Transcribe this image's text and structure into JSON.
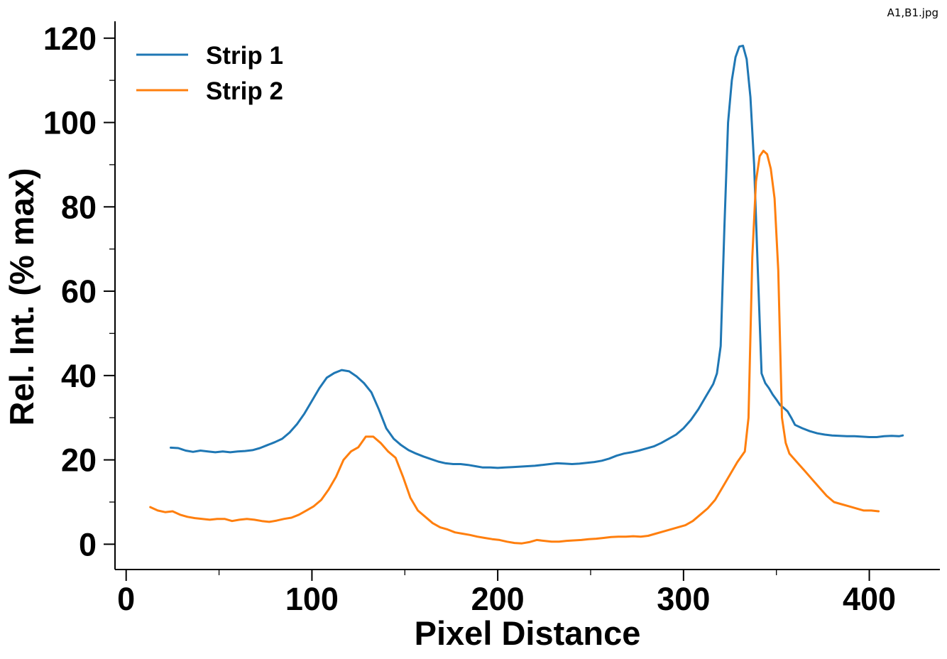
{
  "filename": "A1,B1.jpg",
  "chart_data": {
    "type": "line",
    "title": "",
    "xlabel": "Pixel Distance",
    "ylabel": "Rel. Int. (% max)",
    "xlim": [
      -6,
      438
    ],
    "ylim": [
      -6,
      124
    ],
    "xticks": [
      0,
      100,
      200,
      300,
      400
    ],
    "yticks": [
      0,
      20,
      40,
      60,
      80,
      100,
      120
    ],
    "grid": false,
    "legend_position": "top-left",
    "series": [
      {
        "name": "Strip 1",
        "color": "#1f77b4",
        "x": [
          24,
          28,
          32,
          36,
          40,
          44,
          48,
          52,
          56,
          60,
          64,
          68,
          72,
          76,
          80,
          84,
          88,
          92,
          96,
          100,
          104,
          108,
          112,
          116,
          120,
          124,
          128,
          132,
          136,
          140,
          144,
          148,
          152,
          156,
          160,
          164,
          168,
          172,
          176,
          180,
          184,
          188,
          192,
          196,
          200,
          204,
          208,
          212,
          216,
          220,
          224,
          228,
          232,
          236,
          240,
          244,
          248,
          252,
          256,
          260,
          264,
          268,
          272,
          276,
          280,
          284,
          288,
          292,
          296,
          300,
          304,
          308,
          312,
          316,
          318,
          320,
          322,
          324,
          326,
          328,
          330,
          332,
          334,
          336,
          338,
          340,
          342,
          344,
          346,
          348,
          350,
          352,
          354,
          356,
          358,
          360,
          364,
          368,
          372,
          376,
          380,
          384,
          388,
          392,
          396,
          400,
          404,
          408,
          412,
          416,
          418
        ],
        "values": [
          22.9,
          22.8,
          22.2,
          21.9,
          22.2,
          22.0,
          21.8,
          22.0,
          21.8,
          22.0,
          22.1,
          22.3,
          22.8,
          23.5,
          24.2,
          25.0,
          26.5,
          28.5,
          31.0,
          34.0,
          37.0,
          39.5,
          40.6,
          41.3,
          41.0,
          39.8,
          38.2,
          36.0,
          32.0,
          27.5,
          25.0,
          23.5,
          22.3,
          21.5,
          20.8,
          20.2,
          19.6,
          19.2,
          19.0,
          19.0,
          18.8,
          18.5,
          18.2,
          18.2,
          18.1,
          18.2,
          18.3,
          18.4,
          18.5,
          18.6,
          18.8,
          19.0,
          19.2,
          19.1,
          19.0,
          19.1,
          19.3,
          19.5,
          19.8,
          20.3,
          21.0,
          21.5,
          21.8,
          22.2,
          22.7,
          23.2,
          24.0,
          25.0,
          26.0,
          27.5,
          29.5,
          32.0,
          35.0,
          38.0,
          40.5,
          47.0,
          75.0,
          100.0,
          110.0,
          115.5,
          118.0,
          118.2,
          115.0,
          106.0,
          90.0,
          65.0,
          40.5,
          38.2,
          37.0,
          35.5,
          34.3,
          33.0,
          32.3,
          31.5,
          30.0,
          28.3,
          27.5,
          26.8,
          26.3,
          26.0,
          25.8,
          25.7,
          25.6,
          25.6,
          25.5,
          25.4,
          25.4,
          25.6,
          25.7,
          25.6,
          25.8
        ]
      },
      {
        "name": "Strip 2",
        "color": "#ff7f0e",
        "x": [
          13,
          17,
          21,
          25,
          29,
          33,
          37,
          41,
          45,
          49,
          53,
          57,
          61,
          65,
          69,
          73,
          77,
          81,
          85,
          89,
          93,
          97,
          101,
          105,
          109,
          113,
          117,
          121,
          125,
          129,
          133,
          137,
          141,
          145,
          149,
          153,
          157,
          161,
          165,
          169,
          173,
          177,
          181,
          185,
          189,
          193,
          197,
          201,
          205,
          209,
          213,
          217,
          221,
          225,
          229,
          233,
          237,
          241,
          245,
          249,
          253,
          257,
          261,
          265,
          269,
          273,
          277,
          281,
          285,
          289,
          293,
          297,
          301,
          305,
          309,
          313,
          317,
          321,
          325,
          329,
          333,
          335,
          337,
          339,
          341,
          343,
          345,
          347,
          349,
          351,
          353,
          355,
          357,
          359,
          361,
          363,
          365,
          369,
          373,
          377,
          381,
          385,
          389,
          393,
          397,
          401,
          405
        ],
        "values": [
          8.8,
          8.0,
          7.6,
          7.8,
          7.0,
          6.5,
          6.2,
          6.0,
          5.8,
          6.0,
          6.0,
          5.5,
          5.8,
          6.0,
          5.8,
          5.5,
          5.3,
          5.6,
          6.0,
          6.3,
          7.0,
          8.0,
          9.0,
          10.5,
          13.0,
          16.0,
          20.0,
          22.0,
          23.0,
          25.5,
          25.5,
          24.0,
          22.0,
          20.5,
          16.0,
          11.0,
          8.0,
          6.5,
          5.0,
          4.0,
          3.5,
          2.8,
          2.5,
          2.2,
          1.8,
          1.5,
          1.2,
          1.0,
          0.6,
          0.3,
          0.2,
          0.5,
          1.0,
          0.8,
          0.6,
          0.6,
          0.8,
          0.9,
          1.0,
          1.2,
          1.3,
          1.5,
          1.7,
          1.8,
          1.8,
          1.9,
          1.8,
          2.0,
          2.5,
          3.0,
          3.5,
          4.0,
          4.5,
          5.5,
          7.0,
          8.5,
          10.5,
          13.5,
          16.5,
          19.5,
          22.0,
          30.0,
          68.0,
          86.0,
          92.0,
          93.3,
          92.5,
          89.0,
          82.0,
          65.0,
          30.0,
          24.0,
          21.5,
          20.5,
          19.5,
          18.5,
          17.5,
          15.5,
          13.5,
          11.5,
          10.0,
          9.5,
          9.0,
          8.5,
          8.0,
          8.0,
          7.8
        ]
      }
    ]
  }
}
